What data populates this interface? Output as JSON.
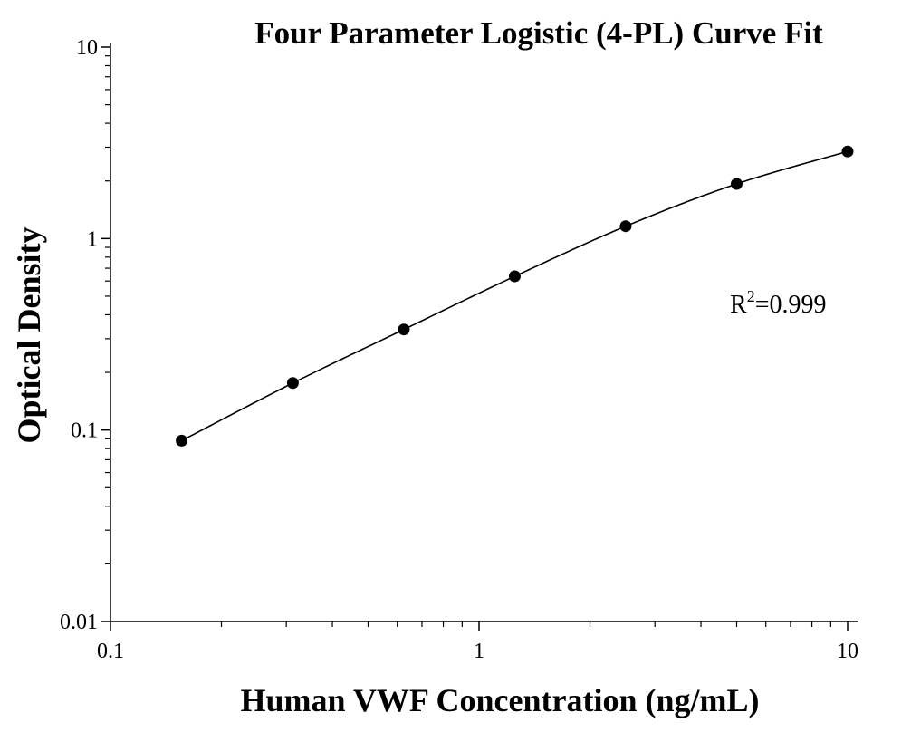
{
  "chart_data": {
    "type": "scatter",
    "title": "Four Parameter Logistic (4-PL) Curve Fit",
    "xlabel": "Human VWF Concentration (ng/mL)",
    "ylabel": "Optical Density",
    "xscale": "log",
    "yscale": "log",
    "xlim": [
      0.1,
      10
    ],
    "ylim": [
      0.01,
      10
    ],
    "x_ticks": [
      "0.1",
      "1",
      "10"
    ],
    "y_ticks": [
      "0.01",
      "0.1",
      "1",
      "10"
    ],
    "grid": false,
    "series": [
      {
        "x": [
          0.156,
          0.3125,
          0.625,
          1.25,
          2.5,
          5,
          10
        ],
        "y": [
          0.088,
          0.176,
          0.335,
          0.635,
          1.16,
          1.93,
          2.85
        ]
      }
    ],
    "fit_curve": "4-PL",
    "annotation": {
      "r_letter": "R",
      "r_exponent": "2",
      "r_value": "=0.999"
    },
    "colors": {
      "points": "#000000",
      "line": "#000000",
      "axes": "#000000",
      "background": "#ffffff"
    }
  }
}
